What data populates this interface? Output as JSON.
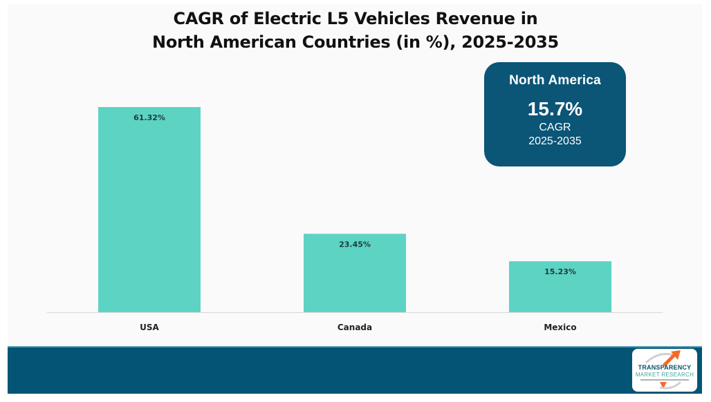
{
  "title_lines": [
    "CAGR of Electric L5 Vehicles Revenue in",
    "North American Countries (in %), 2025-2035"
  ],
  "badge": {
    "region": "North America",
    "value": "15.7%",
    "metric": "CAGR",
    "period": "2025-2035"
  },
  "logo": {
    "line1": "TRANSPARENCY",
    "line2": "MARKET RESEARCH"
  },
  "colors": {
    "bar": "#5dd3c4",
    "badge": "#0b5577",
    "banner": "#045575",
    "axis": "#d9d9d9",
    "label_text": "#1f3b3a",
    "logo_arrow": "#f26b2a"
  },
  "chart_data": {
    "type": "bar",
    "title": "CAGR of Electric L5 Vehicles Revenue in North American Countries (in %), 2025-2035",
    "categories": [
      "USA",
      "Canada",
      "Mexico"
    ],
    "values": [
      61.32,
      23.45,
      15.23
    ],
    "data_labels": [
      "61.32%",
      "23.45%",
      "15.23%"
    ],
    "xlabel": "",
    "ylabel": "",
    "ylim": [
      0,
      61.32
    ],
    "grid": false,
    "legend": "none"
  }
}
